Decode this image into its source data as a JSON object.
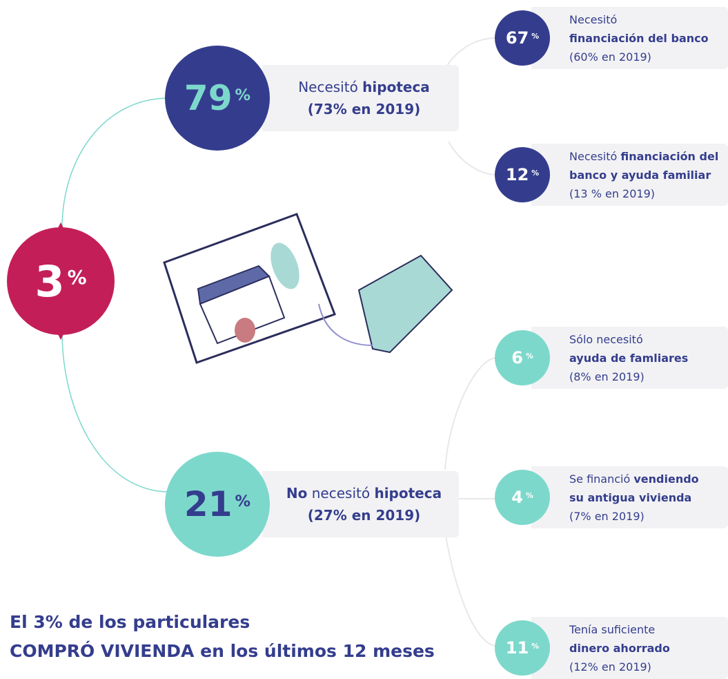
{
  "root": {
    "value": 3,
    "unit": "%"
  },
  "branches": [
    {
      "value": 79,
      "unit": "%",
      "label": [
        [
          {
            "text": "Necesitó ",
            "bold": false
          },
          {
            "text": "hipoteca",
            "bold": true
          }
        ]
      ],
      "note": "(73% en 2019)",
      "children": [
        {
          "value": 67,
          "unit": "%",
          "label": [
            [
              {
                "text": "Necesitó",
                "bold": false
              }
            ],
            [
              {
                "text": "financiación del banco",
                "bold": true
              }
            ]
          ],
          "note": "(60% en 2019)"
        },
        {
          "value": 12,
          "unit": "%",
          "label": [
            [
              {
                "text": "Necesitó ",
                "bold": false
              },
              {
                "text": "financiación del",
                "bold": true
              }
            ],
            [
              {
                "text": "banco y ayuda familiar",
                "bold": true
              }
            ]
          ],
          "note": "(13 % en 2019)"
        }
      ]
    },
    {
      "value": 21,
      "unit": "%",
      "label": [
        [
          {
            "text": "No",
            "bold": true
          },
          {
            "text": " necesitó ",
            "bold": false
          },
          {
            "text": "hipoteca",
            "bold": true
          }
        ]
      ],
      "note": "(27% en 2019)",
      "children": [
        {
          "value": 6,
          "unit": "%",
          "label": [
            [
              {
                "text": "Sólo necesitó",
                "bold": false
              }
            ],
            [
              {
                "text": "ayuda de famliares",
                "bold": true
              }
            ]
          ],
          "note": "(8% en 2019)"
        },
        {
          "value": 4,
          "unit": "%",
          "label": [
            [
              {
                "text": "Se financió ",
                "bold": false
              },
              {
                "text": "vendiendo",
                "bold": true
              }
            ],
            [
              {
                "text": "su antigua vivienda",
                "bold": true
              }
            ]
          ],
          "note": "(7% en 2019)"
        },
        {
          "value": 11,
          "unit": "%",
          "label": [
            [
              {
                "text": "Tenía suficiente",
                "bold": false
              }
            ],
            [
              {
                "text": "dinero ahorrado",
                "bold": true
              }
            ]
          ],
          "note": "(12% en 2019)"
        }
      ]
    }
  ],
  "footer": [
    "El 3% de los particulares",
    "COMPRÓ VIVIENDA en los últimos 12 meses"
  ]
}
